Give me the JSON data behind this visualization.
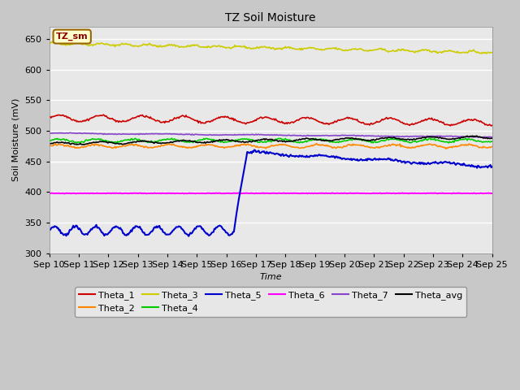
{
  "title": "TZ Soil Moisture",
  "xlabel": "Time",
  "ylabel": "Soil Moisture (mV)",
  "ylim": [
    300,
    670
  ],
  "yticks": [
    300,
    350,
    400,
    450,
    500,
    550,
    600,
    650
  ],
  "x_labels": [
    "Sep 10",
    "Sep 11",
    "Sep 12",
    "Sep 13",
    "Sep 14",
    "Sep 15",
    "Sep 16",
    "Sep 17",
    "Sep 18",
    "Sep 19",
    "Sep 20",
    "Sep 21",
    "Sep 22",
    "Sep 23",
    "Sep 24",
    "Sep 25"
  ],
  "fig_bg": "#c8c8c8",
  "plot_bg": "#e8e8e8",
  "grid_color": "#ffffff",
  "series_colors": {
    "Theta_1": "#cc0000",
    "Theta_2": "#ff8800",
    "Theta_3": "#cccc00",
    "Theta_4": "#00cc00",
    "Theta_5": "#0000cc",
    "Theta_6": "#ff00ff",
    "Theta_7": "#8844cc",
    "Theta_avg": "#000000"
  },
  "legend_box": {
    "facecolor": "#ffffcc",
    "edgecolor": "#996600",
    "label": "TZ_sm",
    "text_color": "#880000"
  },
  "n_points": 500
}
